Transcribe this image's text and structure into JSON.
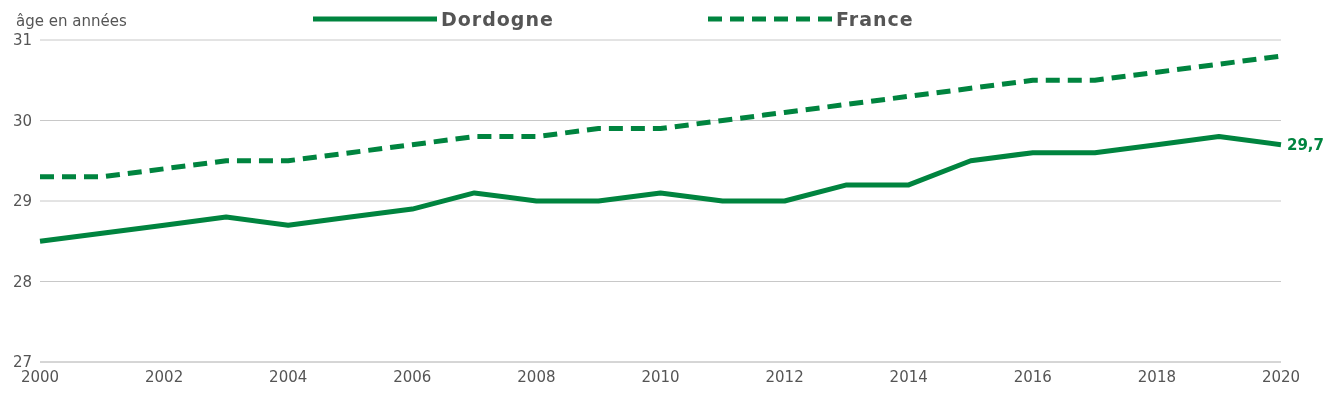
{
  "chart_data": {
    "type": "line",
    "ylabel": "âge en années",
    "x": [
      2000,
      2001,
      2002,
      2003,
      2004,
      2005,
      2006,
      2007,
      2008,
      2009,
      2010,
      2011,
      2012,
      2013,
      2014,
      2015,
      2016,
      2017,
      2018,
      2019,
      2020
    ],
    "series": [
      {
        "name": "Dordogne",
        "color": "#00843f",
        "line_style": "solid",
        "values": [
          28.5,
          28.6,
          28.7,
          28.8,
          28.7,
          28.8,
          28.9,
          29.1,
          29.0,
          29.0,
          29.1,
          29.0,
          29.0,
          29.2,
          29.2,
          29.5,
          29.6,
          29.6,
          29.7,
          29.8,
          29.7
        ]
      },
      {
        "name": "France",
        "color": "#00843f",
        "line_style": "dashed",
        "values": [
          29.3,
          29.3,
          29.4,
          29.5,
          29.5,
          29.6,
          29.7,
          29.8,
          29.8,
          29.9,
          29.9,
          30.0,
          30.1,
          30.2,
          30.3,
          30.4,
          30.5,
          30.5,
          30.6,
          30.7,
          30.8
        ]
      }
    ],
    "xlim": [
      2000,
      2020
    ],
    "xticks": [
      2000,
      2002,
      2004,
      2006,
      2008,
      2010,
      2012,
      2014,
      2016,
      2018,
      2020
    ],
    "ylim": [
      27,
      31
    ],
    "yticks": [
      27,
      28,
      29,
      30,
      31
    ],
    "grid": "y",
    "legend": "top",
    "marker": "none",
    "annotations": [
      {
        "text": "29,7",
        "x": 2020,
        "y": 29.7
      }
    ]
  }
}
